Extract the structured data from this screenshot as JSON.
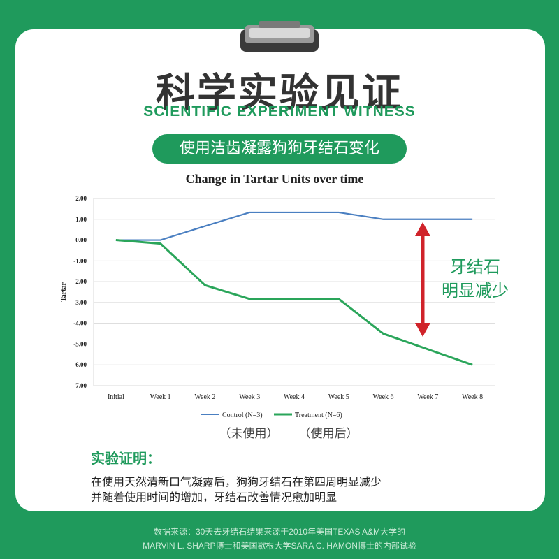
{
  "header": {
    "title_cn": "科学实验见证",
    "title_en": "SCIENTIFIC EXPERIMENT WITNESS",
    "pill": "使用洁齿凝露狗狗牙结石变化"
  },
  "chart_data": {
    "type": "line",
    "title": "Change in Tartar Units over time",
    "xlabel": "",
    "ylabel": "Tartar",
    "categories": [
      "Initial",
      "Week 1",
      "Week 2",
      "Week 3",
      "Week 4",
      "Week 5",
      "Week 6",
      "Week 7",
      "Week 8"
    ],
    "ylim": [
      -7,
      2
    ],
    "yticks": [
      "2.00",
      "1.00",
      "0.00",
      "-1.00",
      "-2.00",
      "-3.00",
      "-4.00",
      "-5.00",
      "-6.00",
      "-7.00"
    ],
    "grid": true,
    "legend_position": "bottom",
    "series": [
      {
        "name": "Control (N=3)",
        "color": "#4a7fc1",
        "values": [
          0,
          0,
          0.67,
          1.33,
          1.33,
          1.33,
          1.0,
          1.0,
          1.0
        ]
      },
      {
        "name": "Treatment (N=6)",
        "color": "#2aa55a",
        "values": [
          0,
          -0.17,
          -2.17,
          -2.83,
          -2.83,
          -2.83,
          -4.5,
          -5.25,
          -6.0
        ]
      }
    ],
    "legend_notes": [
      "（未使用）",
      "（使用后）"
    ],
    "annotation": {
      "line1": "牙结石",
      "line2": "明显减少",
      "color": "#1f9a5c",
      "arrow_color": "#d0232a"
    }
  },
  "note": {
    "title": "实验证明：",
    "line1": "在使用天然清新口气凝露后，狗狗牙结石在第四周明显减少",
    "line2": "并随着使用时间的增加，牙结石改善情况愈加明显"
  },
  "footer": {
    "line1": "数据来源：30天去牙结石结果来源于2010年美国TEXAS A&M大学的",
    "line2": "MARVIN L. SHARP博士和美国歇根大学SARA C. HAMON博士的内部试验"
  }
}
